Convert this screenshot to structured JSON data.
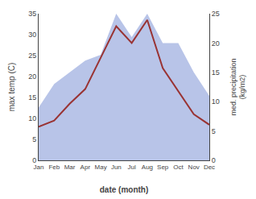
{
  "chart_data": {
    "type": "line",
    "xlabel": "date (month)",
    "ylabel": "max temp (C)",
    "y2label": "med. precipitation\n(kg/m2)",
    "categories": [
      "Jan",
      "Feb",
      "Mar",
      "Apr",
      "May",
      "Jun",
      "Jul",
      "Aug",
      "Sep",
      "Oct",
      "Nov",
      "Dec"
    ],
    "series": [
      {
        "type": "area",
        "axis": "y2",
        "color": "#b8c4e8",
        "values": [
          9.0,
          13.0,
          15.0,
          17.0,
          18.0,
          25.0,
          21.0,
          25.0,
          20.0,
          20.0,
          15.0,
          11.0
        ]
      },
      {
        "type": "line",
        "color": "#993333",
        "values": [
          8.0,
          9.5,
          13.5,
          17.0,
          24.5,
          32.0,
          28.0,
          33.5,
          22.0,
          16.5,
          11.0,
          8.5
        ]
      }
    ],
    "ylim": [
      0,
      35
    ],
    "yticks": [
      0,
      5,
      10,
      15,
      20,
      25,
      30,
      35
    ],
    "y2lim": [
      0,
      25
    ],
    "y2ticks": [
      0,
      5,
      10,
      15,
      20,
      25
    ],
    "grid": false
  }
}
